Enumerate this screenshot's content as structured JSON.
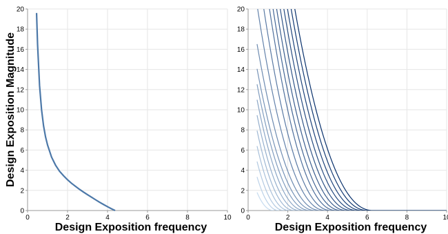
{
  "chart_data": [
    {
      "type": "line",
      "xlabel": "Design Exposition frequency",
      "ylabel": "Design Exposition Magnitude",
      "xlim": [
        0,
        10
      ],
      "ylim": [
        0,
        20
      ],
      "xticks": [
        "0",
        "2",
        "4",
        "6",
        "8",
        "10"
      ],
      "yticks": [
        "0",
        "2",
        "4",
        "6",
        "8",
        "10",
        "12",
        "14",
        "16",
        "18",
        "20"
      ],
      "grid": true,
      "legend": "none",
      "series": [
        {
          "color": "#4c78a8",
          "x": [
            0.45,
            0.5,
            0.6,
            0.7,
            0.8,
            0.9,
            1.0,
            1.2,
            1.4,
            1.6,
            1.8,
            2.0,
            2.2,
            2.4,
            2.6,
            2.8,
            3.0,
            3.2,
            3.4,
            3.6,
            3.8,
            4.0,
            4.2,
            4.38
          ],
          "y": [
            19.6,
            16.5,
            12.4,
            10.0,
            8.4,
            7.3,
            6.5,
            5.3,
            4.5,
            3.9,
            3.45,
            3.05,
            2.7,
            2.4,
            2.1,
            1.83,
            1.57,
            1.32,
            1.07,
            0.83,
            0.6,
            0.38,
            0.17,
            0.0
          ]
        }
      ]
    },
    {
      "type": "line",
      "xlabel": "Design Exposition frequency",
      "ylabel": "",
      "xlim": [
        0,
        10
      ],
      "ylim": [
        0,
        20
      ],
      "xticks": [
        "0",
        "2",
        "4",
        "6",
        "8",
        "10"
      ],
      "yticks": [
        "0",
        "2",
        "4",
        "6",
        "8",
        "10",
        "12",
        "14",
        "16",
        "18",
        "20"
      ],
      "grid": true,
      "legend": "none",
      "color_scale": [
        "#c6dbef",
        "#08306b"
      ],
      "curve_family": {
        "count": 20,
        "x_start": 0.45,
        "x_end_min": 1.3,
        "x_end_max": 6.3,
        "y_start_min": 1.8,
        "y_start_max": 20,
        "baseline_x_end": 10
      }
    }
  ]
}
